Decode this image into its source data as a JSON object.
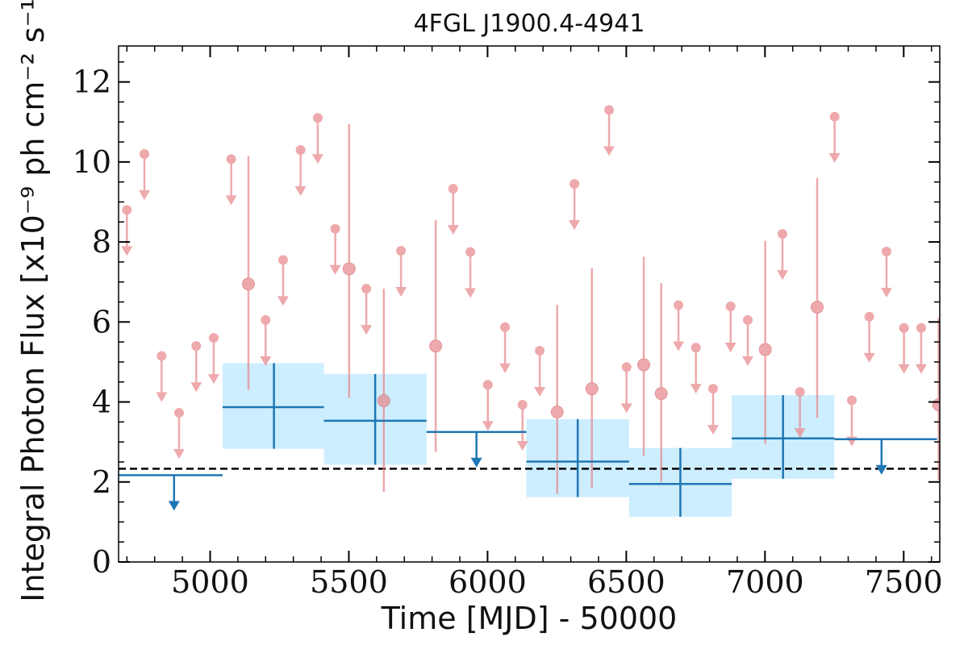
{
  "chart_data": {
    "type": "scatter",
    "title": "4FGL J1900.4-4941",
    "xlabel": "Time [MJD] - 50000",
    "ylabel": "Integral Photon Flux [x10⁻⁹ ph cm⁻² s⁻¹]",
    "xlim": [
      4670,
      7630
    ],
    "ylim": [
      0,
      12.9
    ],
    "xticks": [
      5000,
      5500,
      6000,
      6500,
      7000,
      7500
    ],
    "yticks": [
      0,
      2,
      4,
      6,
      8,
      10,
      12
    ],
    "average_flux": 2.33,
    "colors": {
      "short_bins": "#e8858a",
      "long_bins": "#1f77b4",
      "long_band": "#cdeeff",
      "average_line": "#000000"
    },
    "long_bins": [
      {
        "x_start": 4670,
        "x_end": 5045,
        "x": 4870,
        "y": 2.17,
        "upper_limit": true
      },
      {
        "x_start": 5045,
        "x_end": 5410,
        "x": 5230,
        "y": 3.87,
        "err_low": 2.83,
        "err_high": 4.97,
        "upper_limit": false
      },
      {
        "x_start": 5410,
        "x_end": 5780,
        "x": 5595,
        "y": 3.53,
        "err_low": 2.43,
        "err_high": 4.7,
        "upper_limit": false
      },
      {
        "x_start": 5780,
        "x_end": 6140,
        "x": 5960,
        "y": 3.25,
        "upper_limit": true
      },
      {
        "x_start": 6140,
        "x_end": 6510,
        "x": 6325,
        "y": 2.51,
        "err_low": 1.62,
        "err_high": 3.57,
        "upper_limit": false
      },
      {
        "x_start": 6510,
        "x_end": 6880,
        "x": 6695,
        "y": 1.95,
        "err_low": 1.13,
        "err_high": 2.85,
        "upper_limit": false
      },
      {
        "x_start": 6880,
        "x_end": 7250,
        "x": 7065,
        "y": 3.09,
        "err_low": 2.08,
        "err_high": 4.17,
        "upper_limit": false
      },
      {
        "x_start": 7250,
        "x_end": 7620,
        "x": 7420,
        "y": 3.07,
        "upper_limit": true
      }
    ],
    "short_bins": [
      {
        "x": 4700,
        "y": 8.8,
        "upper_limit": true
      },
      {
        "x": 4763,
        "y": 10.2,
        "upper_limit": true
      },
      {
        "x": 4825,
        "y": 5.15,
        "upper_limit": true
      },
      {
        "x": 4888,
        "y": 3.73,
        "upper_limit": true
      },
      {
        "x": 4950,
        "y": 5.4,
        "upper_limit": true
      },
      {
        "x": 5013,
        "y": 5.6,
        "upper_limit": true
      },
      {
        "x": 5076,
        "y": 10.07,
        "upper_limit": true
      },
      {
        "x": 5138,
        "y": 6.95,
        "err_low": 4.3,
        "err_high": 10.15,
        "upper_limit": false
      },
      {
        "x": 5200,
        "y": 6.05,
        "upper_limit": true
      },
      {
        "x": 5263,
        "y": 7.55,
        "upper_limit": true
      },
      {
        "x": 5326,
        "y": 10.3,
        "upper_limit": true
      },
      {
        "x": 5388,
        "y": 11.1,
        "upper_limit": true
      },
      {
        "x": 5451,
        "y": 8.33,
        "upper_limit": true
      },
      {
        "x": 5501,
        "y": 7.33,
        "err_low": 4.1,
        "err_high": 10.95,
        "upper_limit": false
      },
      {
        "x": 5563,
        "y": 6.83,
        "upper_limit": true
      },
      {
        "x": 5626,
        "y": 4.03,
        "err_low": 1.75,
        "err_high": 6.83,
        "upper_limit": false
      },
      {
        "x": 5688,
        "y": 7.78,
        "upper_limit": true
      },
      {
        "x": 5813,
        "y": 5.4,
        "err_low": 2.75,
        "err_high": 8.55,
        "upper_limit": false
      },
      {
        "x": 5876,
        "y": 9.33,
        "upper_limit": true
      },
      {
        "x": 5938,
        "y": 7.75,
        "upper_limit": true
      },
      {
        "x": 6001,
        "y": 4.43,
        "upper_limit": true
      },
      {
        "x": 6063,
        "y": 5.87,
        "upper_limit": true
      },
      {
        "x": 6126,
        "y": 3.93,
        "upper_limit": true
      },
      {
        "x": 6188,
        "y": 5.28,
        "upper_limit": true
      },
      {
        "x": 6251,
        "y": 3.75,
        "err_low": 1.7,
        "err_high": 6.43,
        "upper_limit": false
      },
      {
        "x": 6313,
        "y": 9.45,
        "upper_limit": true
      },
      {
        "x": 6376,
        "y": 4.33,
        "err_low": 1.85,
        "err_high": 7.35,
        "upper_limit": false
      },
      {
        "x": 6438,
        "y": 11.3,
        "upper_limit": true
      },
      {
        "x": 6501,
        "y": 4.87,
        "upper_limit": true
      },
      {
        "x": 6563,
        "y": 4.93,
        "err_low": 2.65,
        "err_high": 7.63,
        "upper_limit": false
      },
      {
        "x": 6626,
        "y": 4.21,
        "err_low": 2.0,
        "err_high": 6.97,
        "upper_limit": false
      },
      {
        "x": 6688,
        "y": 6.42,
        "upper_limit": true
      },
      {
        "x": 6751,
        "y": 5.36,
        "upper_limit": true
      },
      {
        "x": 6813,
        "y": 4.33,
        "upper_limit": true
      },
      {
        "x": 6876,
        "y": 6.39,
        "upper_limit": true
      },
      {
        "x": 6938,
        "y": 6.05,
        "upper_limit": true
      },
      {
        "x": 7001,
        "y": 5.31,
        "err_low": 2.95,
        "err_high": 8.03,
        "upper_limit": false
      },
      {
        "x": 7063,
        "y": 8.2,
        "upper_limit": true
      },
      {
        "x": 7126,
        "y": 4.25,
        "upper_limit": true
      },
      {
        "x": 7188,
        "y": 6.37,
        "err_low": 3.6,
        "err_high": 9.6,
        "upper_limit": false
      },
      {
        "x": 7251,
        "y": 11.13,
        "upper_limit": true
      },
      {
        "x": 7313,
        "y": 4.04,
        "upper_limit": true
      },
      {
        "x": 7376,
        "y": 6.13,
        "upper_limit": true
      },
      {
        "x": 7438,
        "y": 7.76,
        "upper_limit": true
      },
      {
        "x": 7501,
        "y": 5.85,
        "upper_limit": true
      },
      {
        "x": 7563,
        "y": 5.85,
        "upper_limit": true
      },
      {
        "x": 7626,
        "y": 3.93,
        "err_low": 2.05,
        "err_high": 6.1,
        "upper_limit": false
      }
    ]
  }
}
